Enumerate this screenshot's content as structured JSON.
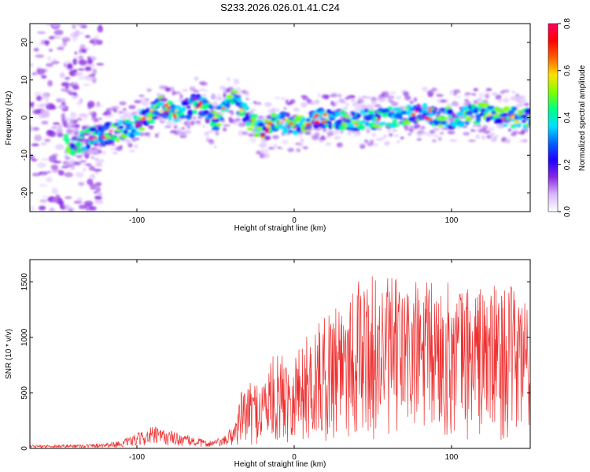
{
  "title": "S233.2026.026.01.41.C24",
  "chart_data": [
    {
      "type": "heatmap",
      "xlabel": "Height of straight line (km)",
      "ylabel": "Frequency (Hz)",
      "xlim": [
        -168,
        150
      ],
      "ylim": [
        -25,
        25
      ],
      "x_ticks": [
        -100,
        0,
        100
      ],
      "y_ticks": [
        -20,
        -10,
        0,
        10,
        20
      ],
      "colorbar": {
        "label": "Normalized spectral amplitude",
        "range": [
          0,
          0.8
        ],
        "ticks": [
          "0.0",
          "0.2",
          "0.4",
          "0.6",
          "0.8"
        ],
        "colors": [
          "#ffffff",
          "#d9b8ff",
          "#8a2be2",
          "#2000ff",
          "#0060ff",
          "#00e0ff",
          "#00ff80",
          "#80ff00",
          "#ffe000",
          "#ff6000",
          "#ff0000",
          "#ff0060"
        ]
      },
      "ridge": [
        {
          "x": -140,
          "f": -7
        },
        {
          "x": -120,
          "f": -4.5
        },
        {
          "x": -100,
          "f": -2
        },
        {
          "x": -85,
          "f": 3
        },
        {
          "x": -75,
          "f": 1
        },
        {
          "x": -60,
          "f": 4
        },
        {
          "x": -50,
          "f": -1
        },
        {
          "x": -40,
          "f": 6
        },
        {
          "x": -30,
          "f": 0
        },
        {
          "x": -20,
          "f": -4
        },
        {
          "x": -10,
          "f": -1
        },
        {
          "x": 0,
          "f": -2
        },
        {
          "x": 20,
          "f": 0
        },
        {
          "x": 40,
          "f": -1
        },
        {
          "x": 60,
          "f": 0
        },
        {
          "x": 80,
          "f": 1
        },
        {
          "x": 100,
          "f": 0
        },
        {
          "x": 120,
          "f": 1
        },
        {
          "x": 140,
          "f": 0
        }
      ]
    },
    {
      "type": "line",
      "xlabel": "Height of straight line (km)",
      "ylabel": "SNR (10 * v/v)",
      "xlim": [
        -168,
        150
      ],
      "ylim": [
        0,
        1700
      ],
      "x_ticks": [
        -100,
        0,
        100
      ],
      "y_ticks": [
        0,
        500,
        1000,
        1500
      ],
      "color": "#ee3030",
      "envelope": [
        {
          "x": -168,
          "y": 30
        },
        {
          "x": -130,
          "y": 40
        },
        {
          "x": -110,
          "y": 70
        },
        {
          "x": -90,
          "y": 200
        },
        {
          "x": -75,
          "y": 150
        },
        {
          "x": -55,
          "y": 70
        },
        {
          "x": -45,
          "y": 100
        },
        {
          "x": -38,
          "y": 250
        },
        {
          "x": -33,
          "y": 550
        },
        {
          "x": -20,
          "y": 650
        },
        {
          "x": -15,
          "y": 820
        },
        {
          "x": 0,
          "y": 900
        },
        {
          "x": 10,
          "y": 1050
        },
        {
          "x": 20,
          "y": 1200
        },
        {
          "x": 30,
          "y": 1500
        },
        {
          "x": 50,
          "y": 1550
        },
        {
          "x": 100,
          "y": 1500
        },
        {
          "x": 150,
          "y": 1450
        }
      ]
    }
  ]
}
